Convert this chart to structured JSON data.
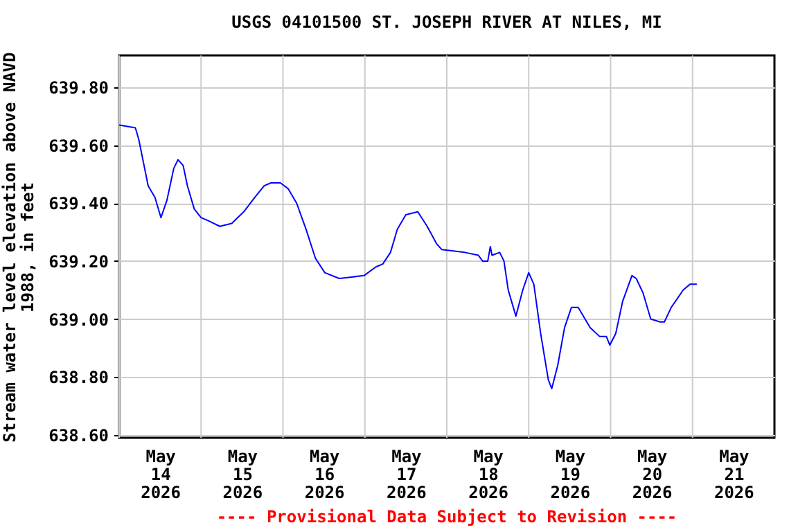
{
  "chart_data": {
    "type": "line",
    "title": "USGS 04101500 ST. JOSEPH RIVER AT NILES, MI",
    "ylabel": "Stream water level elevation above NAVD 1988, in feet",
    "annotations": [
      "---- Provisional Data Subject to Revision ----"
    ],
    "xlim": [
      "2026-05-14T00:00",
      "2026-05-22T00:00"
    ],
    "xticks": [
      {
        "value": "2026-05-14T00:00",
        "label": null
      },
      {
        "value": "2026-05-14T12:00",
        "label": "May 14 2026"
      },
      {
        "value": "2026-05-15T00:00",
        "label": null
      },
      {
        "value": "2026-05-15T12:00",
        "label": "May 15 2026"
      },
      {
        "value": "2026-05-16T00:00",
        "label": null
      },
      {
        "value": "2026-05-16T12:00",
        "label": "May 16 2026"
      },
      {
        "value": "2026-05-17T00:00",
        "label": null
      },
      {
        "value": "2026-05-17T12:00",
        "label": "May 17 2026"
      },
      {
        "value": "2026-05-18T00:00",
        "label": null
      },
      {
        "value": "2026-05-18T12:00",
        "label": "May 18 2026"
      },
      {
        "value": "2026-05-19T00:00",
        "label": null
      },
      {
        "value": "2026-05-19T12:00",
        "label": "May 19 2026"
      },
      {
        "value": "2026-05-20T00:00",
        "label": null
      },
      {
        "value": "2026-05-20T12:00",
        "label": "May 20 2026"
      },
      {
        "value": "2026-05-21T00:00",
        "label": null
      },
      {
        "value": "2026-05-21T12:00",
        "label": "May 21 2026"
      }
    ],
    "ylim": [
      638.59,
      639.91
    ],
    "yticks": [
      {
        "value": 638.6,
        "label": "638.60"
      },
      {
        "value": 638.8,
        "label": "638.80"
      },
      {
        "value": 639.0,
        "label": "639.00"
      },
      {
        "value": 639.2,
        "label": "639.20"
      },
      {
        "value": 639.4,
        "label": "639.40"
      },
      {
        "value": 639.6,
        "label": "639.60"
      },
      {
        "value": 639.8,
        "label": "639.80"
      }
    ],
    "grid": true,
    "series": [
      {
        "color": "#0000ff",
        "x": [
          "2026-05-14T00:00",
          "2026-05-14T04:45",
          "2026-05-14T05:45",
          "2026-05-14T08:30",
          "2026-05-14T10:30",
          "2026-05-14T12:15",
          "2026-05-14T14:00",
          "2026-05-14T16:00",
          "2026-05-14T17:15",
          "2026-05-14T18:45",
          "2026-05-14T20:00",
          "2026-05-14T22:00",
          "2026-05-15T00:00",
          "2026-05-15T02:00",
          "2026-05-15T05:30",
          "2026-05-15T09:00",
          "2026-05-15T12:30",
          "2026-05-15T15:45",
          "2026-05-15T18:30",
          "2026-05-15T20:30",
          "2026-05-15T23:15",
          "2026-05-16T01:30",
          "2026-05-16T04:00",
          "2026-05-16T06:45",
          "2026-05-16T09:30",
          "2026-05-16T12:15",
          "2026-05-16T16:30",
          "2026-05-16T23:45",
          "2026-05-17T03:15",
          "2026-05-17T05:15",
          "2026-05-17T07:30",
          "2026-05-17T09:30",
          "2026-05-17T12:00",
          "2026-05-17T15:30",
          "2026-05-17T18:15",
          "2026-05-17T21:00",
          "2026-05-17T22:30",
          "2026-05-18T05:15",
          "2026-05-18T09:15",
          "2026-05-18T10:30",
          "2026-05-18T12:00",
          "2026-05-18T12:45",
          "2026-05-18T13:15",
          "2026-05-18T15:30",
          "2026-05-18T16:45",
          "2026-05-18T18:00",
          "2026-05-18T20:15",
          "2026-05-18T22:15",
          "2026-05-19T00:00",
          "2026-05-19T01:30",
          "2026-05-19T03:30",
          "2026-05-19T05:45",
          "2026-05-19T06:45",
          "2026-05-19T08:30",
          "2026-05-19T10:30",
          "2026-05-19T12:30",
          "2026-05-19T14:30",
          "2026-05-19T18:00",
          "2026-05-19T20:45",
          "2026-05-19T22:45",
          "2026-05-19T23:45",
          "2026-05-20T01:30",
          "2026-05-20T03:30",
          "2026-05-20T06:15",
          "2026-05-20T07:30",
          "2026-05-20T09:30",
          "2026-05-20T11:45",
          "2026-05-20T14:30",
          "2026-05-20T15:45",
          "2026-05-20T17:45",
          "2026-05-20T21:15",
          "2026-05-20T23:15",
          "2026-05-21T01:15"
        ],
        "values": [
          639.67,
          639.66,
          639.62,
          639.46,
          639.42,
          639.35,
          639.41,
          639.52,
          639.55,
          639.53,
          639.46,
          639.38,
          639.35,
          639.34,
          639.32,
          639.33,
          639.37,
          639.42,
          639.46,
          639.47,
          639.47,
          639.45,
          639.4,
          639.31,
          639.21,
          639.16,
          639.14,
          639.15,
          639.18,
          639.19,
          639.23,
          639.31,
          639.36,
          639.37,
          639.32,
          639.26,
          639.24,
          639.23,
          639.22,
          639.2,
          639.2,
          639.25,
          639.22,
          639.23,
          639.2,
          639.1,
          639.01,
          639.1,
          639.16,
          639.12,
          638.95,
          638.79,
          638.76,
          638.84,
          638.97,
          639.04,
          639.04,
          638.97,
          638.94,
          638.94,
          638.91,
          638.95,
          639.06,
          639.15,
          639.14,
          639.09,
          639.0,
          638.99,
          638.99,
          639.04,
          639.1,
          639.12,
          639.12
        ]
      }
    ]
  }
}
